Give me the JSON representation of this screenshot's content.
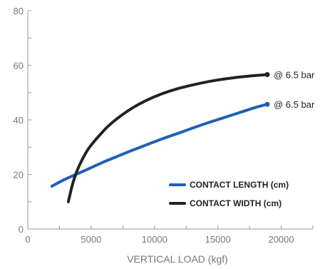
{
  "chart_data": {
    "type": "line",
    "xlabel": "VERTICAL LOAD (kgf)",
    "ylabel": "",
    "xlim": [
      0,
      22500
    ],
    "ylim": [
      0,
      80
    ],
    "x_ticks": [
      0,
      5000,
      10000,
      15000,
      20000
    ],
    "x_tick_labels": [
      "0",
      "5000",
      "10000",
      "15000",
      "20000"
    ],
    "y_ticks": [
      0,
      20,
      40,
      60,
      80
    ],
    "y_tick_labels": [
      "0",
      "20",
      "40",
      "60",
      "80"
    ],
    "grid": false,
    "legend_position": "lower-right",
    "series": [
      {
        "name": "CONTACT LENGTH (cm)",
        "color": "#1f5fb5",
        "end_marker": true,
        "end_label": "@ 6.5 bar",
        "points": [
          [
            1900,
            15.7
          ],
          [
            2500,
            17.2
          ],
          [
            3200,
            18.8
          ],
          [
            4000,
            20.4
          ],
          [
            5000,
            22.5
          ],
          [
            6000,
            24.6
          ],
          [
            7000,
            26.5
          ],
          [
            8000,
            28.4
          ],
          [
            9000,
            30.2
          ],
          [
            10000,
            32.0
          ],
          [
            11000,
            33.7
          ],
          [
            12000,
            35.3
          ],
          [
            13000,
            37.0
          ],
          [
            14000,
            38.6
          ],
          [
            15000,
            40.1
          ],
          [
            16000,
            41.6
          ],
          [
            17000,
            43.1
          ],
          [
            18000,
            44.6
          ],
          [
            18900,
            45.7
          ]
        ]
      },
      {
        "name": "CONTACT WIDTH (cm)",
        "color": "#222222",
        "end_marker": true,
        "end_label": "@ 6.5 bar",
        "points": [
          [
            3200,
            10.0
          ],
          [
            3400,
            14.0
          ],
          [
            3600,
            17.5
          ],
          [
            3900,
            21.5
          ],
          [
            4300,
            25.5
          ],
          [
            4800,
            29.5
          ],
          [
            5500,
            33.5
          ],
          [
            6300,
            37.5
          ],
          [
            7200,
            41.0
          ],
          [
            8200,
            44.2
          ],
          [
            9300,
            47.0
          ],
          [
            10500,
            49.4
          ],
          [
            11800,
            51.4
          ],
          [
            13200,
            53.0
          ],
          [
            14700,
            54.4
          ],
          [
            16200,
            55.4
          ],
          [
            17600,
            56.1
          ],
          [
            18900,
            56.6
          ]
        ]
      }
    ]
  }
}
